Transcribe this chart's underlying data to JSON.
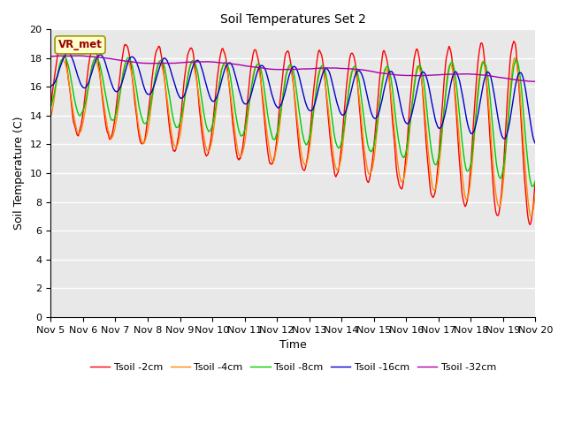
{
  "title": "Soil Temperatures Set 2",
  "xlabel": "Time",
  "ylabel": "Soil Temperature (C)",
  "ylim": [
    0,
    20
  ],
  "yticks": [
    0,
    2,
    4,
    6,
    8,
    10,
    12,
    14,
    16,
    18,
    20
  ],
  "xtick_labels": [
    "Nov 5",
    "Nov 6",
    "Nov 7",
    "Nov 8",
    "Nov 9",
    "Nov 10",
    "Nov 11",
    "Nov 12",
    "Nov 13",
    "Nov 14",
    "Nov 15",
    "Nov 16",
    "Nov 17",
    "Nov 18",
    "Nov 19",
    "Nov 20"
  ],
  "series_colors": [
    "#ff0000",
    "#ff8800",
    "#00cc00",
    "#0000cc",
    "#aa00aa"
  ],
  "series_labels": [
    "Tsoil -2cm",
    "Tsoil -4cm",
    "Tsoil -8cm",
    "Tsoil -16cm",
    "Tsoil -32cm"
  ],
  "bg_color": "#e8e8e8",
  "plot_bg_color": "#e8e8e8",
  "annotation_text": "VR_met",
  "annotation_color": "#990000",
  "annotation_bg": "#ffffcc",
  "annotation_border": "#999900"
}
